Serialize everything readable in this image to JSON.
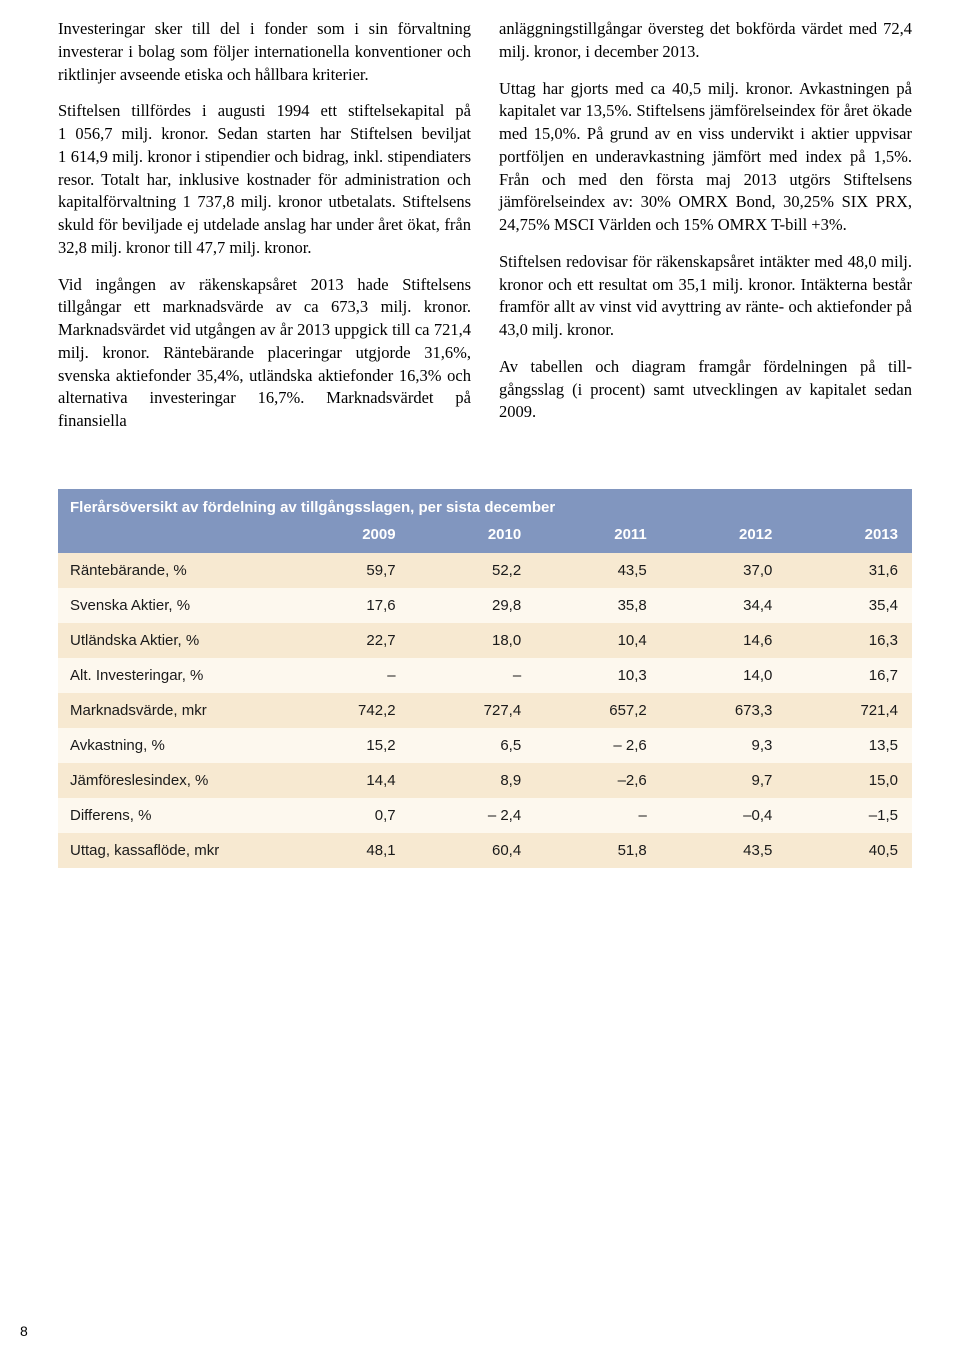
{
  "text": {
    "left": [
      "Investeringar sker till del i fonder som i sin förvalt­ning investerar i bolag som följer internationella konventioner och riktlinjer avseende etiska och håll­bara kriterier.",
      "Stiftelsen tillfördes i augusti 1994 ett stiftelsekapital på 1 056,7 milj. kronor. Sedan starten har Stiftelsen beviljat 1 614,9 milj. kronor i stipendier och bidrag, inkl. stipendiaters resor. Totalt har, inklusive kostna­der för administration och kapitalförvaltning 1 737,8 milj. kronor utbetalats. Stiftelsens skuld för beviljade ej utdelade anslag har under året ökat, från 32,8 milj. kronor till 47,7 milj. kronor.",
      "Vid ingången av räkenskapsåret 2013 hade Stiftel­sens tillgångar ett marknadsvärde av ca 673,3 milj. kronor. Marknadsvärdet vid utgången av år 2013 uppgick till ca 721,4 milj. kronor. Räntebärande placeringar utgjorde 31,6%, svenska aktiefonder 35,4%, utländska aktiefonder 16,3% och alternativa investeringar 16,7%. Marknadsvärdet på finansiella"
    ],
    "right": [
      "anläggningstillgångar översteg det bokförda värdet med 72,4 milj. kronor, i december 2013.",
      "Uttag har gjorts med ca 40,5 milj. kronor. Avkast­ningen på kapitalet var 13,5%. Stiftelsens jämförelse­index för året ökade med 15,0%. På grund av en viss undervikt i aktier uppvisar portföljen en under­avkastning jämfört med index på 1,5%. Från och med den första maj 2013 utgörs Stiftelsens jämförelse­index av: 30% OMRX Bond, 30,25% SIX PRX, 24,75% MSCI Världen och 15% OMRX T-bill +3%.",
      "Stiftelsen redovisar för räkenskapsåret intäkter med 48,0 milj. kronor och ett resultat om 35,1 milj. kronor. Intäkterna består framför allt av vinst vid av­yttring av ränte- och aktiefonder på 43,0 milj. kronor.",
      "Av tabellen och diagram framgår fördelningen på till­gångsslag (i procent) samt utvecklingen av kapitalet sedan 2009."
    ]
  },
  "table": {
    "title": "Flerårsöversikt av fördelning av tillgångsslagen, per sista december",
    "header_bg": "#8196bf",
    "header_color": "#ffffff",
    "row_odd_bg": "#f7e9d1",
    "row_even_bg": "#fdf8ee",
    "body_text_color": "#1a1a1a",
    "font_size_body": 15,
    "columns": [
      "",
      "2009",
      "2010",
      "2011",
      "2012",
      "2013"
    ],
    "rows": [
      {
        "label": "Räntebärande, %",
        "cells": [
          "59,7",
          "52,2",
          "43,5",
          "37,0",
          "31,6"
        ]
      },
      {
        "label": "Svenska Aktier, %",
        "cells": [
          "17,6",
          "29,8",
          "35,8",
          "34,4",
          "35,4"
        ]
      },
      {
        "label": "Utländska Aktier, %",
        "cells": [
          "22,7",
          "18,0",
          "10,4",
          "14,6",
          "16,3"
        ]
      },
      {
        "label": "Alt. Investeringar, %",
        "cells": [
          "–",
          "–",
          "10,3",
          "14,0",
          "16,7"
        ]
      },
      {
        "label": "Marknadsvärde, mkr",
        "cells": [
          "742,2",
          "727,4",
          "657,2",
          "673,3",
          "721,4"
        ]
      },
      {
        "label": "Avkastning, %",
        "cells": [
          "15,2",
          "6,5",
          "– 2,6",
          "9,3",
          "13,5"
        ]
      },
      {
        "label": "Jämföreslesindex, %",
        "cells": [
          "14,4",
          "8,9",
          "–2,6",
          "9,7",
          "15,0"
        ]
      },
      {
        "label": "Differens, %",
        "cells": [
          "0,7",
          "– 2,4",
          "–",
          "–0,4",
          "–1,5"
        ]
      },
      {
        "label": "Uttag, kassaflöde, mkr",
        "cells": [
          "48,1",
          "60,4",
          "51,8",
          "43,5",
          "40,5"
        ]
      }
    ]
  },
  "page_number": "8"
}
